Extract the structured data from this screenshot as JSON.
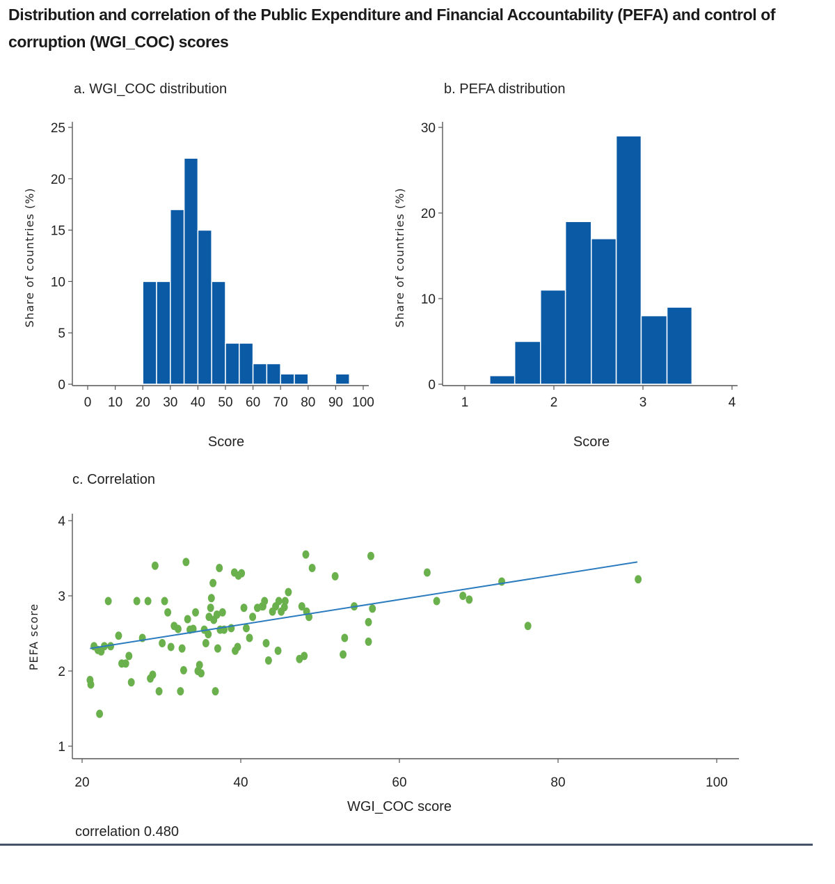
{
  "title": "Distribution and correlation of the Public Expenditure and Financial Accountability (PEFA) and control of corruption (WGI_COC) scores",
  "footnote": "correlation 0.480",
  "colors": {
    "bar": "#0b5aa6",
    "point": "#6ab04c",
    "fit_line": "#2b7bbf"
  },
  "chart_data": [
    {
      "type": "bar",
      "id": "a",
      "title": "a. WGI_COC distribution",
      "xlabel": "Score",
      "ylabel": "Share of countries (%)",
      "xlim": [
        0,
        100
      ],
      "ylim": [
        0,
        25
      ],
      "xticks": [
        0,
        10,
        20,
        30,
        40,
        50,
        60,
        70,
        80,
        90,
        100
      ],
      "yticks": [
        0,
        5,
        10,
        15,
        20,
        25
      ],
      "bins": [
        {
          "start": 20,
          "end": 25,
          "value": 10
        },
        {
          "start": 25,
          "end": 30,
          "value": 10
        },
        {
          "start": 30,
          "end": 35,
          "value": 17
        },
        {
          "start": 35,
          "end": 40,
          "value": 22
        },
        {
          "start": 40,
          "end": 45,
          "value": 15
        },
        {
          "start": 45,
          "end": 50,
          "value": 10
        },
        {
          "start": 50,
          "end": 55,
          "value": 4
        },
        {
          "start": 55,
          "end": 60,
          "value": 4
        },
        {
          "start": 60,
          "end": 65,
          "value": 2
        },
        {
          "start": 65,
          "end": 70,
          "value": 2
        },
        {
          "start": 70,
          "end": 75,
          "value": 1
        },
        {
          "start": 75,
          "end": 80,
          "value": 1
        },
        {
          "start": 90,
          "end": 95,
          "value": 1
        }
      ]
    },
    {
      "type": "bar",
      "id": "b",
      "title": "b. PEFA distribution",
      "xlabel": "Score",
      "ylabel": "Share of countries (%)",
      "xlim": [
        0.8,
        4
      ],
      "ylim": [
        0,
        30
      ],
      "xticks": [
        1,
        2,
        3,
        4
      ],
      "yticks": [
        0,
        10,
        20,
        30
      ],
      "bins": [
        {
          "start": 1.28,
          "end": 1.56,
          "value": 1
        },
        {
          "start": 1.56,
          "end": 1.85,
          "value": 5
        },
        {
          "start": 1.85,
          "end": 2.13,
          "value": 11
        },
        {
          "start": 2.13,
          "end": 2.42,
          "value": 19
        },
        {
          "start": 2.42,
          "end": 2.7,
          "value": 17
        },
        {
          "start": 2.7,
          "end": 2.98,
          "value": 29
        },
        {
          "start": 2.98,
          "end": 3.27,
          "value": 8
        },
        {
          "start": 3.27,
          "end": 3.55,
          "value": 9
        }
      ]
    },
    {
      "type": "scatter",
      "id": "c",
      "title": "c. Correlation",
      "xlabel": "WGI_COC score",
      "ylabel": "PEFA score",
      "xlim": [
        20,
        102
      ],
      "ylim": [
        0.85,
        4.1
      ],
      "xticks": [
        20,
        40,
        60,
        80,
        100
      ],
      "yticks": [
        1,
        2,
        3,
        4
      ],
      "fit_line": {
        "x": [
          21,
          90
        ],
        "y": [
          2.3,
          3.45
        ]
      },
      "points": [
        [
          21,
          1.88
        ],
        [
          21.1,
          1.82
        ],
        [
          21.5,
          2.33
        ],
        [
          22,
          2.28
        ],
        [
          22.2,
          1.43
        ],
        [
          22.4,
          2.26
        ],
        [
          22.8,
          2.33
        ],
        [
          23.3,
          2.93
        ],
        [
          23.6,
          2.33
        ],
        [
          24.6,
          2.47
        ],
        [
          25,
          2.1
        ],
        [
          25.5,
          2.1
        ],
        [
          25.9,
          2.2
        ],
        [
          26.2,
          1.85
        ],
        [
          26.9,
          2.93
        ],
        [
          27.6,
          2.44
        ],
        [
          28.3,
          2.93
        ],
        [
          28.6,
          1.9
        ],
        [
          28.9,
          1.95
        ],
        [
          29.2,
          3.4
        ],
        [
          29.7,
          1.73
        ],
        [
          30.1,
          2.37
        ],
        [
          30.4,
          2.93
        ],
        [
          30.8,
          2.78
        ],
        [
          31.2,
          2.32
        ],
        [
          31.6,
          2.6
        ],
        [
          32.1,
          2.56
        ],
        [
          32.4,
          1.73
        ],
        [
          32.6,
          2.3
        ],
        [
          32.8,
          2.01
        ],
        [
          33.1,
          3.45
        ],
        [
          33.3,
          2.69
        ],
        [
          33.6,
          2.55
        ],
        [
          34,
          2.56
        ],
        [
          34.3,
          2.78
        ],
        [
          34.6,
          2.0
        ],
        [
          34.8,
          2.08
        ],
        [
          35,
          1.97
        ],
        [
          35.4,
          2.55
        ],
        [
          35.6,
          2.37
        ],
        [
          35.9,
          2.49
        ],
        [
          36,
          2.72
        ],
        [
          36.2,
          2.84
        ],
        [
          36.3,
          2.97
        ],
        [
          36.5,
          3.17
        ],
        [
          36.6,
          2.68
        ],
        [
          36.8,
          1.73
        ],
        [
          37,
          2.75
        ],
        [
          37.1,
          2.3
        ],
        [
          37.3,
          3.37
        ],
        [
          37.4,
          2.55
        ],
        [
          37.7,
          2.78
        ],
        [
          37.9,
          2.55
        ],
        [
          38.8,
          2.57
        ],
        [
          39.2,
          3.31
        ],
        [
          39.3,
          2.27
        ],
        [
          39.6,
          2.32
        ],
        [
          39.7,
          3.27
        ],
        [
          40.1,
          3.3
        ],
        [
          40.4,
          2.84
        ],
        [
          40.7,
          2.57
        ],
        [
          41.1,
          2.44
        ],
        [
          41.5,
          2.72
        ],
        [
          42.1,
          2.84
        ],
        [
          42.7,
          2.86
        ],
        [
          42.8,
          2.86
        ],
        [
          43,
          2.93
        ],
        [
          43.2,
          2.37
        ],
        [
          43.5,
          2.14
        ],
        [
          44,
          2.79
        ],
        [
          44.4,
          2.86
        ],
        [
          44.7,
          2.27
        ],
        [
          44.8,
          2.93
        ],
        [
          45.1,
          2.79
        ],
        [
          45.5,
          2.85
        ],
        [
          45.6,
          2.93
        ],
        [
          46,
          3.05
        ],
        [
          47.4,
          2.16
        ],
        [
          47.7,
          2.86
        ],
        [
          48,
          2.2
        ],
        [
          48.2,
          3.55
        ],
        [
          48.3,
          2.79
        ],
        [
          48.6,
          2.72
        ],
        [
          49,
          3.37
        ],
        [
          51.9,
          3.26
        ],
        [
          52.9,
          2.22
        ],
        [
          53.1,
          2.44
        ],
        [
          54.3,
          2.86
        ],
        [
          56.1,
          2.65
        ],
        [
          56.1,
          2.39
        ],
        [
          56.4,
          3.53
        ],
        [
          56.6,
          2.83
        ],
        [
          63.5,
          3.31
        ],
        [
          64.7,
          2.93
        ],
        [
          68,
          3.0
        ],
        [
          68.8,
          2.95
        ],
        [
          72.9,
          3.19
        ],
        [
          76.2,
          2.6
        ],
        [
          90.1,
          3.22
        ]
      ]
    }
  ]
}
